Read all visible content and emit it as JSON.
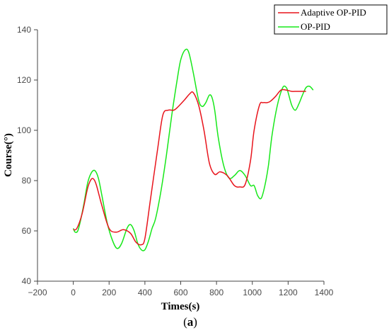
{
  "chart_data": {
    "type": "line",
    "xlabel": "Times(s)",
    "ylabel": "Course(°)",
    "xlim": [
      -200,
      1400
    ],
    "ylim": [
      40,
      140
    ],
    "xticks": [
      -200,
      0,
      200,
      400,
      600,
      800,
      1000,
      1200,
      1400
    ],
    "yticks": [
      40,
      60,
      80,
      100,
      120,
      140
    ],
    "xtick_labels": [
      "−200",
      "0",
      "200",
      "400",
      "600",
      "800",
      "1000",
      "1200",
      "1400"
    ],
    "ytick_labels": [
      "40",
      "60",
      "80",
      "100",
      "120",
      "140"
    ],
    "grid": false,
    "legend_position": "top-right",
    "caption_prefix": "(",
    "caption_letter": "a",
    "caption_suffix": ")",
    "series": [
      {
        "name": "Adaptive OP-PID",
        "color": "#e8141c",
        "x": [
          0,
          20,
          50,
          80,
          100,
          115,
          130,
          160,
          200,
          240,
          280,
          320,
          350,
          380,
          400,
          430,
          470,
          500,
          530,
          560,
          580,
          620,
          650,
          670,
          700,
          730,
          760,
          790,
          820,
          860,
          900,
          930,
          960,
          990,
          1010,
          1040,
          1060,
          1080,
          1100,
          1130,
          1160,
          1190,
          1220,
          1250,
          1300
        ],
        "y": [
          60.5,
          61,
          67,
          77,
          80.5,
          80.5,
          78,
          70,
          61,
          59.5,
          60.5,
          59,
          55.5,
          54.5,
          57,
          72,
          92,
          106,
          108,
          108,
          109,
          112,
          114.5,
          115,
          110,
          100,
          87,
          82.5,
          83.5,
          82,
          78,
          77.5,
          78.5,
          88,
          100,
          110,
          111,
          111,
          111.5,
          113.5,
          116,
          116,
          115.5,
          115.5,
          115.5
        ]
      },
      {
        "name": "OP-PID",
        "color": "#17e81a",
        "x": [
          0,
          10,
          25,
          40,
          60,
          80,
          100,
          120,
          140,
          160,
          190,
          220,
          245,
          270,
          300,
          320,
          340,
          360,
          380,
          400,
          420,
          440,
          460,
          490,
          520,
          550,
          580,
          600,
          625,
          645,
          670,
          700,
          720,
          740,
          760,
          775,
          790,
          810,
          840,
          870,
          900,
          930,
          960,
          990,
          1010,
          1030,
          1050,
          1070,
          1090,
          1110,
          1140,
          1170,
          1190,
          1200,
          1220,
          1240,
          1260,
          1280,
          1300,
          1320,
          1340
        ],
        "y": [
          61,
          59.5,
          60,
          64,
          71,
          79,
          83,
          84,
          81,
          74,
          63,
          56,
          53,
          55,
          61,
          62.5,
          60,
          55,
          52.5,
          52.5,
          56,
          61,
          65,
          76,
          90,
          106,
          120,
          128,
          132,
          131,
          123,
          112,
          109.5,
          111,
          114,
          113,
          108,
          97,
          86,
          81,
          82,
          84,
          82,
          78,
          78,
          74,
          73,
          78,
          86,
          98,
          110,
          117,
          117,
          115,
          110,
          108,
          110.5,
          114,
          117,
          117.5,
          116
        ]
      }
    ]
  }
}
